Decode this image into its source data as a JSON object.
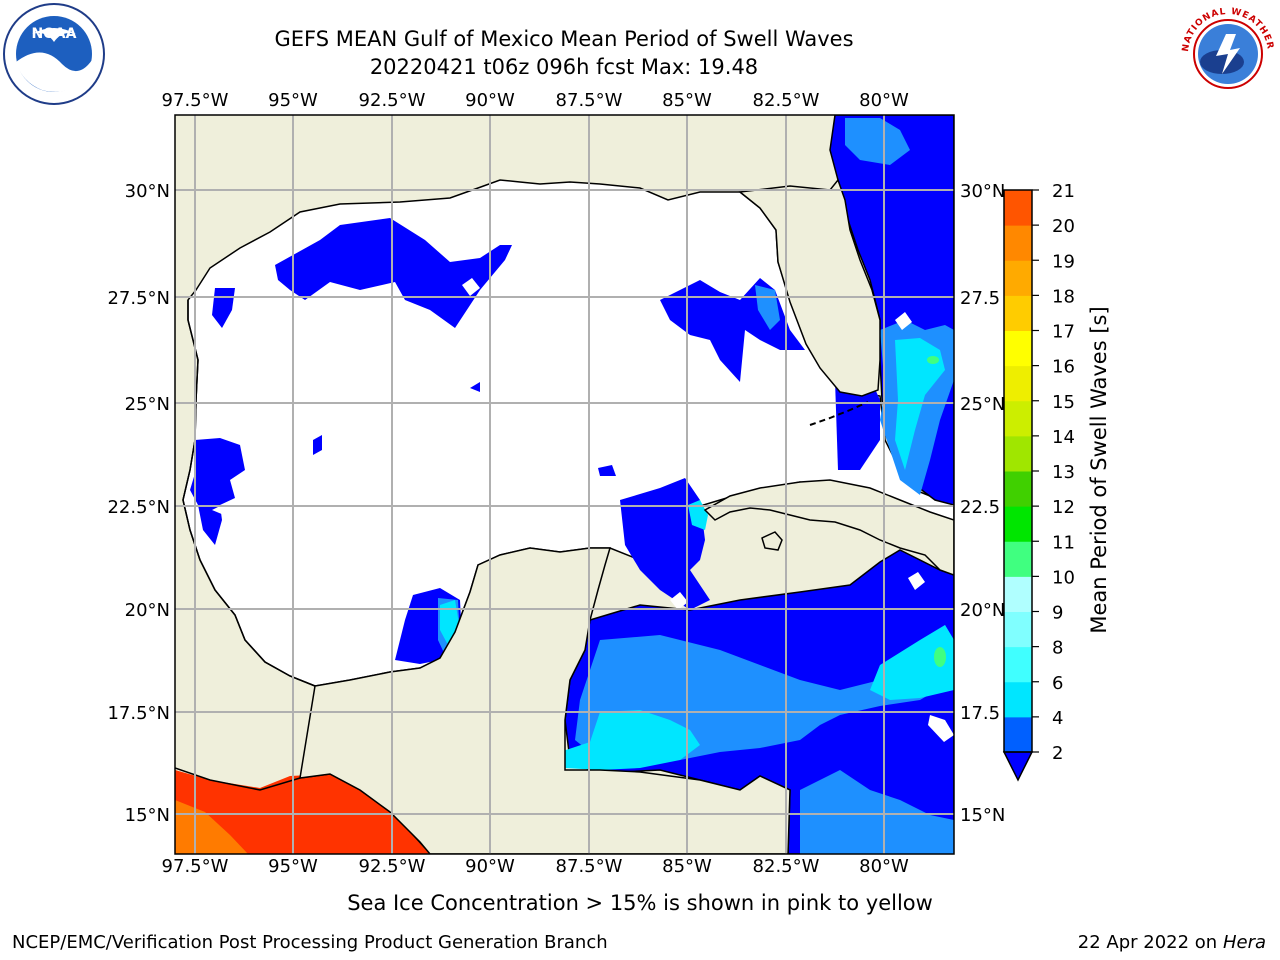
{
  "title": {
    "line1": "GEFS MEAN Gulf of Mexico Mean Period of Swell Waves",
    "line2": "20220421 t06z 096h fcst   Max: 19.48"
  },
  "axes": {
    "lon_labels": [
      "97.5°W",
      "95°W",
      "92.5°W",
      "90°W",
      "87.5°W",
      "85°W",
      "82.5°W",
      "80°W"
    ],
    "lat_labels_left": [
      "30°N",
      "27.5°N",
      "25°N",
      "22.5°N",
      "20°N",
      "17.5°N",
      "15°N"
    ],
    "lat_labels_right": [
      "30°N",
      "27.5",
      "25°N",
      "22.5",
      "20°N",
      "17.5",
      "15°N"
    ]
  },
  "colorbar": {
    "label": "Mean Period of Swell Waves [s]",
    "ticks": [
      "2",
      "4",
      "6",
      "8",
      "9",
      "10",
      "11",
      "12",
      "13",
      "14",
      "15",
      "16",
      "17",
      "18",
      "19",
      "20",
      "21"
    ],
    "colors": [
      "#0060ff",
      "#00e6ff",
      "#40ffff",
      "#80ffff",
      "#b0ffff",
      "#40ff80",
      "#00e600",
      "#40d000",
      "#a0e600",
      "#ccee00",
      "#eeee00",
      "#ffff00",
      "#ffcc00",
      "#ffaa00",
      "#ff8800",
      "#ff5500",
      "#ff3300",
      "#ff0000"
    ],
    "under_color": "#0000ff"
  },
  "map": {
    "land_color": "#efefdb",
    "water_color": "#ffffff",
    "swell_low_color": "#0000ff",
    "swell_mid_color": "#1e90ff",
    "swell_high_color": "#00e6ff",
    "pacific_color": "#ff3300",
    "pacific_edge_color": "#ff8800"
  },
  "footer": {
    "note": "Sea Ice Concentration > 15% is shown in pink to yellow",
    "credit": "NCEP/EMC/Verification Post Processing Product Generation Branch",
    "date": "22 Apr 2022 on",
    "machine": "Hera"
  },
  "logos": {
    "noaa_text": "NOAA",
    "nws_text": "NATIONAL WEATHER SERVICE"
  }
}
